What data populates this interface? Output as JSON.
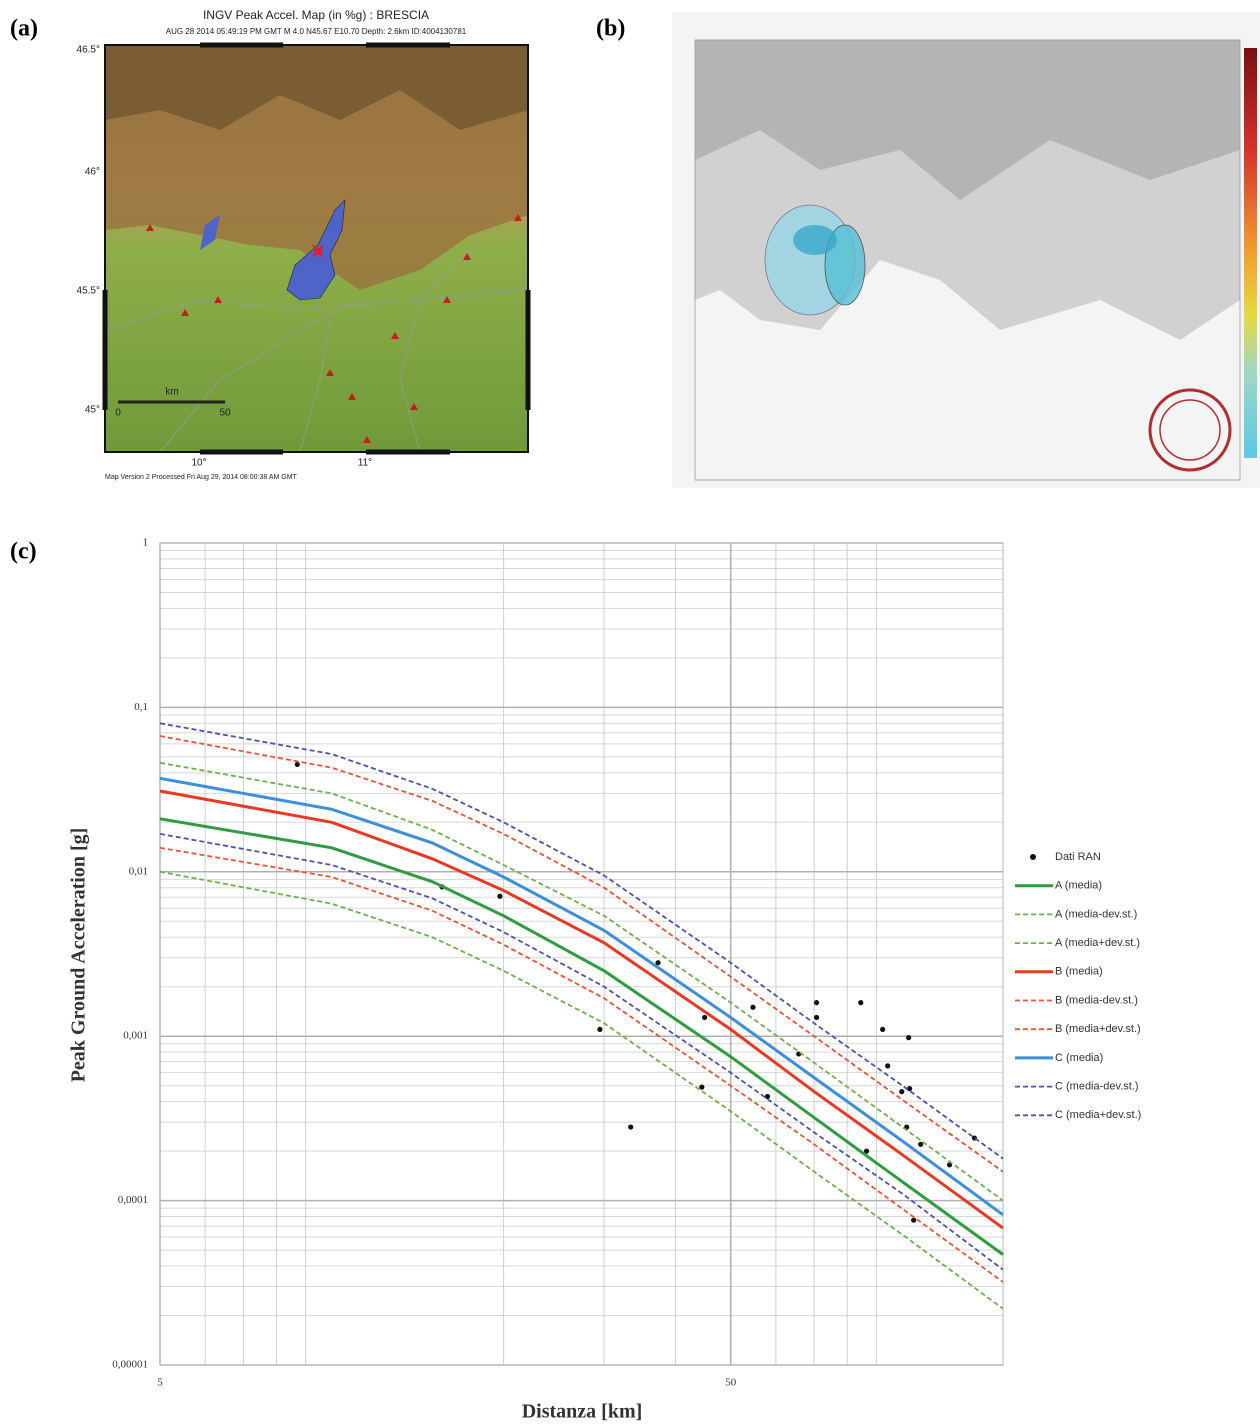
{
  "panels": [
    "(a)",
    "(b)",
    "(c)"
  ],
  "map_a": {
    "title": "INGV Peak Accel. Map (in %g) : BRESCIA",
    "subtitle": "AUG 28 2014 05:49:19 PM GMT   M 4.0   N45.67 E10.70   Depth: 2.6km   ID:4004130781",
    "lat_ticks": [
      "46.5°",
      "46°",
      "45.5°",
      "45°"
    ],
    "lon_ticks": [
      "10°",
      "11°"
    ],
    "scale_label": "km",
    "scale_ticks": [
      "0",
      "50"
    ],
    "footer": "Map Version 2 Processed Fri Aug 29, 2014 08:00:38 AM GMT"
  },
  "chart_data": {
    "type": "line",
    "x_label": "Distanza [km]",
    "y_label": "Peak Ground Acceleration [g]",
    "log_x": true,
    "log_y": true,
    "grid": true,
    "minor_grid": true,
    "legend": "right",
    "xlim": [
      5,
      150
    ],
    "xticks": [
      5,
      50
    ],
    "ylim": [
      1e-05,
      1
    ],
    "yticks": [
      1,
      {
        "value": 0.1,
        "label": "0,1"
      },
      {
        "value": 0.01,
        "label": "0,01"
      },
      {
        "value": 0.001,
        "label": "0,001"
      },
      {
        "value": 0.0001,
        "label": "0,0001"
      },
      {
        "value": 1e-05,
        "label": "0,00001"
      }
    ],
    "series": [
      {
        "name": "Dati RAN",
        "type": "scatter",
        "color": "#111111",
        "x": [
          8.7,
          15.6,
          19.7,
          29.5,
          33.4,
          37.3,
          44.5,
          45,
          54.7,
          58,
          65.8,
          70.7,
          70.7,
          84.5,
          86.5,
          92.3,
          94.2,
          99.7,
          101.7,
          102.5,
          102.9,
          104.6,
          107.6,
          120.9,
          133.7
        ],
        "values": [
          0.045,
          0.0081,
          0.0071,
          0.0011,
          0.00028,
          0.0028,
          0.00049,
          0.0013,
          0.0015,
          0.00043,
          0.00078,
          0.0016,
          0.0013,
          0.0016,
          0.0002,
          0.0011,
          0.00066,
          0.00046,
          0.00028,
          0.00098,
          0.00048,
          7.6e-05,
          0.00022,
          0.000165,
          0.00024
        ]
      },
      {
        "name": "A (media)",
        "type": "line",
        "dashed": false,
        "color": "#2f9c3f",
        "x": [
          5,
          10,
          15,
          20,
          30,
          50,
          70,
          100,
          150
        ],
        "values": [
          0.021,
          0.014,
          0.0087,
          0.0054,
          0.0025,
          0.00075,
          0.00032,
          0.00013,
          4.7e-05
        ]
      },
      {
        "name": "A (media-dev.st.)",
        "type": "line",
        "dashed": true,
        "color": "#6db04d",
        "x": [
          5,
          10,
          15,
          20,
          30,
          50,
          70,
          100,
          150
        ],
        "values": [
          0.01,
          0.0064,
          0.004,
          0.0025,
          0.0012,
          0.00035,
          0.00015,
          6.2e-05,
          2.2e-05
        ]
      },
      {
        "name": "A (media+dev.st.)",
        "type": "line",
        "dashed": true,
        "color": "#6db04d",
        "x": [
          5,
          10,
          15,
          20,
          30,
          50,
          70,
          100,
          150
        ],
        "values": [
          0.046,
          0.03,
          0.018,
          0.011,
          0.0054,
          0.0016,
          0.00069,
          0.00028,
          0.0001
        ]
      },
      {
        "name": "B (media)",
        "type": "line",
        "dashed": false,
        "color": "#e53a23",
        "x": [
          5,
          10,
          15,
          20,
          30,
          50,
          70,
          100,
          150
        ],
        "values": [
          0.031,
          0.02,
          0.012,
          0.0077,
          0.0037,
          0.0011,
          0.00046,
          0.00019,
          6.8e-05
        ]
      },
      {
        "name": "B (media-dev.st.)",
        "type": "line",
        "dashed": true,
        "color": "#e4553a",
        "x": [
          5,
          10,
          15,
          20,
          30,
          50,
          70,
          100,
          150
        ],
        "values": [
          0.014,
          0.0093,
          0.0058,
          0.0036,
          0.0017,
          0.0005,
          0.00022,
          8.9e-05,
          3.2e-05
        ]
      },
      {
        "name": "B (media+dev.st.)",
        "type": "line",
        "dashed": true,
        "color": "#e4553a",
        "x": [
          5,
          10,
          15,
          20,
          30,
          50,
          70,
          100,
          150
        ],
        "values": [
          0.067,
          0.043,
          0.027,
          0.017,
          0.008,
          0.0023,
          0.001,
          0.00041,
          0.00015
        ]
      },
      {
        "name": "C (media)",
        "type": "line",
        "dashed": false,
        "color": "#3c8fd8",
        "x": [
          5,
          10,
          15,
          20,
          30,
          50,
          70,
          100,
          150
        ],
        "values": [
          0.037,
          0.024,
          0.015,
          0.0093,
          0.0044,
          0.0013,
          0.00056,
          0.00023,
          8.2e-05
        ]
      },
      {
        "name": "C (media-dev.st.)",
        "type": "line",
        "dashed": true,
        "color": "#5050b0",
        "x": [
          5,
          10,
          15,
          20,
          30,
          50,
          70,
          100,
          150
        ],
        "values": [
          0.017,
          0.011,
          0.0069,
          0.0043,
          0.002,
          0.0006,
          0.00026,
          0.00011,
          3.8e-05
        ]
      },
      {
        "name": "C (media+dev.st.)",
        "type": "line",
        "dashed": true,
        "color": "#5050b0",
        "x": [
          5,
          10,
          15,
          20,
          30,
          50,
          70,
          100,
          150
        ],
        "values": [
          0.08,
          0.052,
          0.032,
          0.02,
          0.0095,
          0.0028,
          0.0012,
          0.0005,
          0.00018
        ]
      }
    ]
  }
}
